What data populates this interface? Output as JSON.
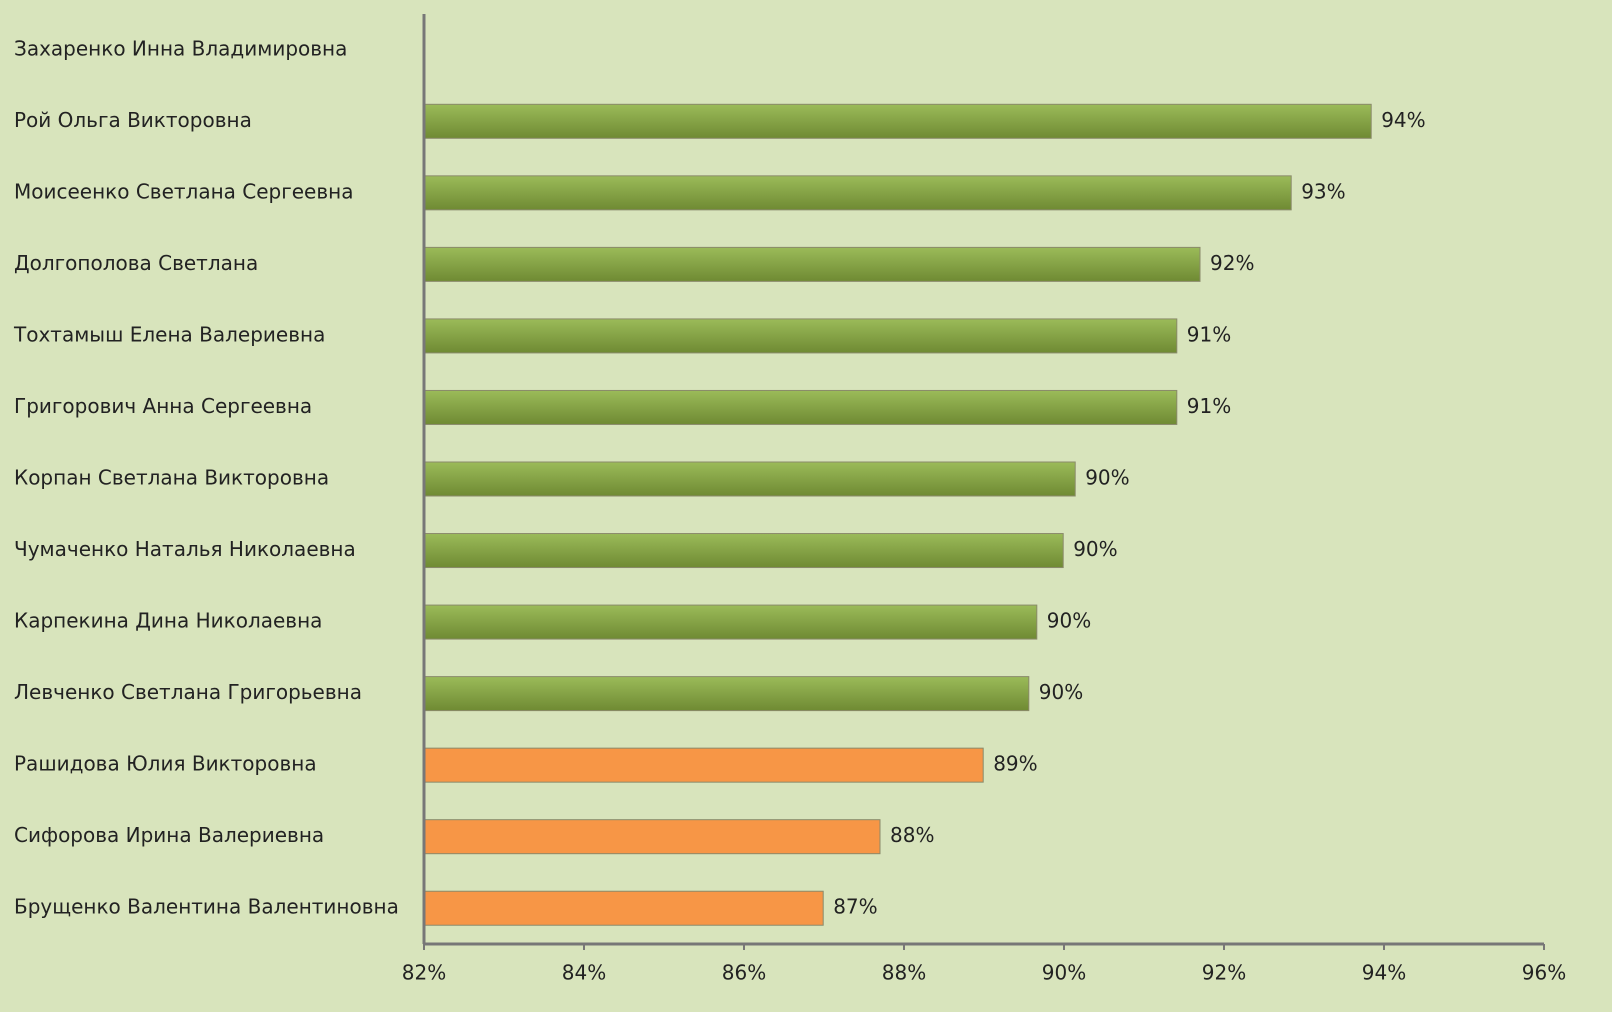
{
  "chart_data": {
    "type": "barh",
    "categories": [
      "Захаренко Инна Владимировна",
      "Рой Ольга Викторовна",
      "Моисеенко Светлана Сергеевна",
      "Долгополова Светлана",
      "Тохтамыш Елена Валериевна",
      "Григорович Анна Сергеевна",
      "Корпан Светлана Викторовна",
      "Чумаченко Наталья Николаевна",
      "Карпекина Дина Николаевна",
      "Левченко Светлана Григорьевна",
      "Рашидова Юлия Викторовна",
      "Сифорова Ирина Валериевна",
      "Брущенко Валентина Валентиновна"
    ],
    "values": [
      null,
      93.84,
      92.84,
      91.7,
      91.41,
      91.41,
      90.14,
      89.99,
      89.66,
      89.56,
      88.99,
      87.7,
      86.99
    ],
    "value_labels": [
      null,
      "94%",
      "93%",
      "92%",
      "91%",
      "91%",
      "90%",
      "90%",
      "90%",
      "90%",
      "89%",
      "88%",
      "87%"
    ],
    "colors": [
      "#77933c",
      "#77933c",
      "#77933c",
      "#77933c",
      "#77933c",
      "#77933c",
      "#77933c",
      "#77933c",
      "#77933c",
      "#77933c",
      "#f79646",
      "#f79646",
      "#f79646"
    ],
    "xlim": [
      82,
      96
    ],
    "xticks": [
      {
        "value": 82,
        "label": "82%"
      },
      {
        "value": 84,
        "label": "84%"
      },
      {
        "value": 86,
        "label": "86%"
      },
      {
        "value": 88,
        "label": "88%"
      },
      {
        "value": 90,
        "label": "90%"
      },
      {
        "value": 92,
        "label": "92%"
      },
      {
        "value": 94,
        "label": "94%"
      },
      {
        "value": 96,
        "label": "96%"
      }
    ]
  }
}
